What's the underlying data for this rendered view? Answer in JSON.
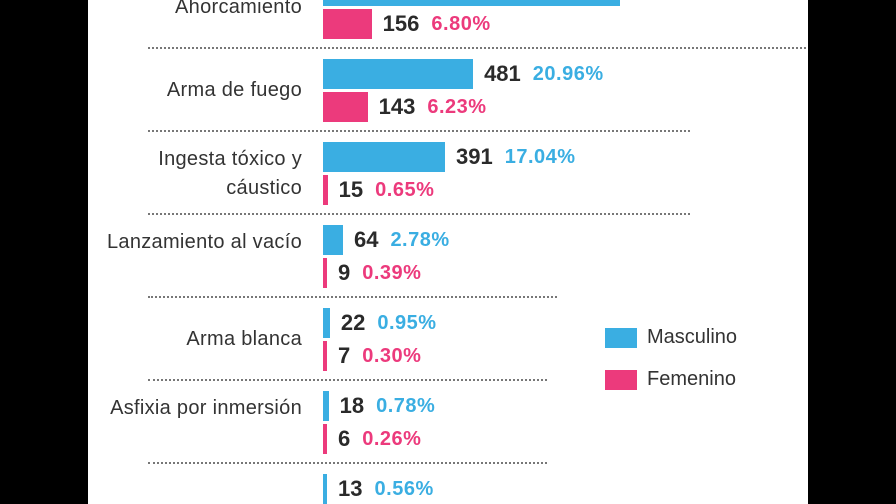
{
  "colors": {
    "masculino": "#3aaee2",
    "femenino": "#ec3a7c"
  },
  "legend": {
    "masculino": "Masculino",
    "femenino": "Femenino"
  },
  "chart_data": {
    "type": "bar",
    "orientation": "horizontal",
    "series": [
      {
        "name": "Masculino"
      },
      {
        "name": "Femenino"
      }
    ],
    "categories": [
      {
        "label": "Ahorcamiento",
        "masculino": {
          "value": 952,
          "label": "",
          "pct": ""
        },
        "femenino": {
          "value": 156,
          "label": "156",
          "pct": "6.80%"
        }
      },
      {
        "label": "Arma de fuego",
        "masculino": {
          "value": 481,
          "label": "481",
          "pct": "20.96%"
        },
        "femenino": {
          "value": 143,
          "label": "143",
          "pct": "6.23%"
        }
      },
      {
        "label": "Ingesta tóxico y cáustico",
        "masculino": {
          "value": 391,
          "label": "391",
          "pct": "17.04%"
        },
        "femenino": {
          "value": 15,
          "label": "15",
          "pct": "0.65%"
        }
      },
      {
        "label": "Lanzamiento al vacío",
        "masculino": {
          "value": 64,
          "label": "64",
          "pct": "2.78%"
        },
        "femenino": {
          "value": 9,
          "label": "9",
          "pct": "0.39%"
        }
      },
      {
        "label": "Arma blanca",
        "masculino": {
          "value": 22,
          "label": "22",
          "pct": "0.95%"
        },
        "femenino": {
          "value": 7,
          "label": "7",
          "pct": "0.30%"
        }
      },
      {
        "label": "Asfixia por inmersión",
        "masculino": {
          "value": 18,
          "label": "18",
          "pct": "0.78%"
        },
        "femenino": {
          "value": 6,
          "label": "6",
          "pct": "0.26%"
        }
      },
      {
        "label": "",
        "masculino": {
          "value": 13,
          "label": "13",
          "pct": "0.56%"
        },
        "femenino": null
      }
    ]
  }
}
